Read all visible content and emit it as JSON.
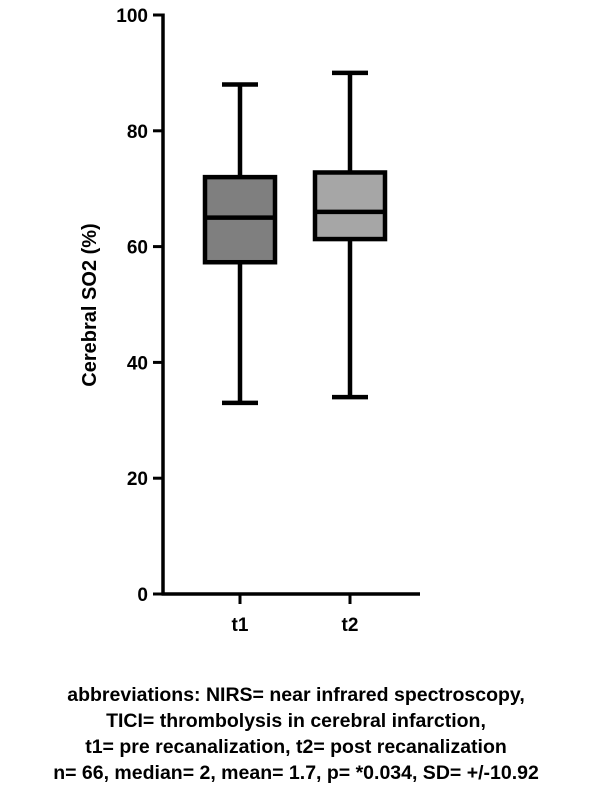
{
  "chart_data": {
    "type": "box",
    "ylabel": "Cerebral SO2 (%)",
    "xlabel": "",
    "ylim": [
      0,
      100
    ],
    "yticks": [
      0,
      20,
      40,
      60,
      80,
      100
    ],
    "categories": [
      "t1",
      "t2"
    ],
    "boxes": [
      {
        "category": "t1",
        "min": 33,
        "q1": 57.3,
        "median": 65,
        "q3": 72,
        "max": 88,
        "color": "#7f7f7f"
      },
      {
        "category": "t2",
        "min": 34,
        "q1": 61.3,
        "median": 66,
        "q3": 72.8,
        "max": 90,
        "color": "#a6a6a6"
      }
    ],
    "grid": false
  },
  "caption": {
    "lines": [
      "abbreviations: NIRS= near infrared spectroscopy,",
      "TICI= thrombolysis in cerebral infarction,",
      "t1= pre recanalization, t2= post recanalization",
      "n= 66, median= 2, mean= 1.7, p= *0.034, SD= +/-10.92"
    ]
  }
}
